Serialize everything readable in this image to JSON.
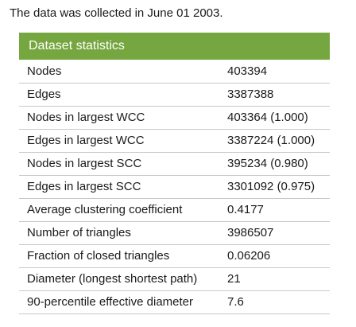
{
  "intro": "The data was collected in June 01 2003.",
  "table": {
    "header": "Dataset statistics",
    "rows": [
      {
        "label": "Nodes",
        "value": "403394"
      },
      {
        "label": "Edges",
        "value": "3387388"
      },
      {
        "label": "Nodes in largest WCC",
        "value": "403364 (1.000)"
      },
      {
        "label": "Edges in largest WCC",
        "value": "3387224 (1.000)"
      },
      {
        "label": "Nodes in largest SCC",
        "value": "395234 (0.980)"
      },
      {
        "label": "Edges in largest SCC",
        "value": "3301092 (0.975)"
      },
      {
        "label": "Average clustering coefficient",
        "value": "0.4177"
      },
      {
        "label": "Number of triangles",
        "value": "3986507"
      },
      {
        "label": "Fraction of closed triangles",
        "value": "0.06206"
      },
      {
        "label": "Diameter (longest shortest path)",
        "value": "21"
      },
      {
        "label": "90-percentile effective diameter",
        "value": "7.6"
      }
    ]
  }
}
